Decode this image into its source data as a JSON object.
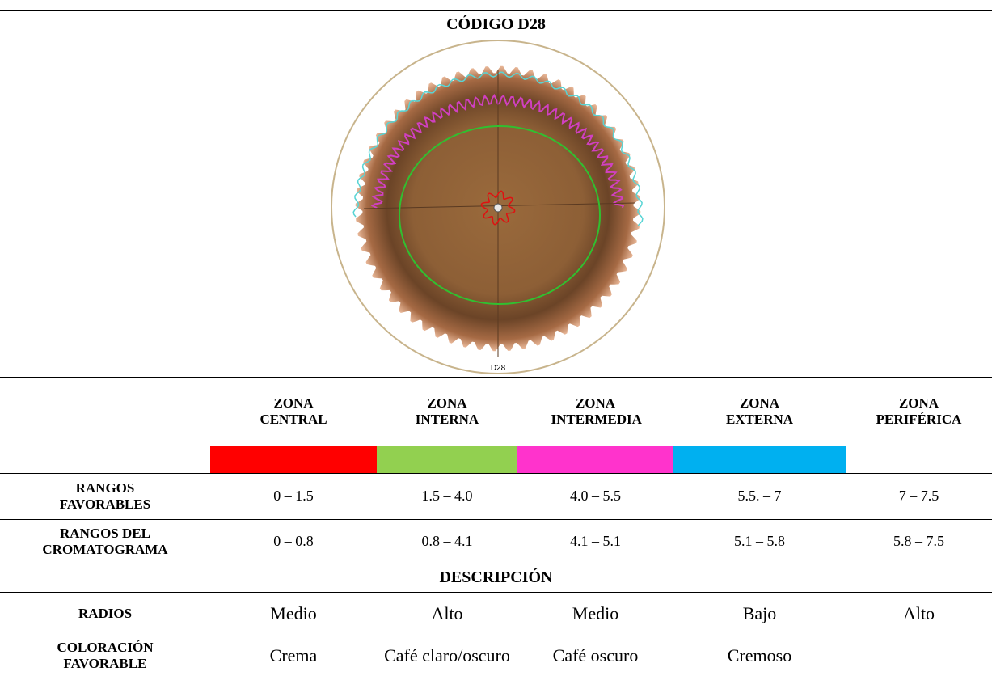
{
  "header": {
    "title": "CÓDIGO D28"
  },
  "image": {
    "label": "D28"
  },
  "table": {
    "zones": [
      {
        "name": "ZONA CENTRAL",
        "color": "#ff0000"
      },
      {
        "name": "ZONA INTERNA",
        "color": "#92d050"
      },
      {
        "name": "ZONA INTERMEDIA",
        "color": "#ff33cc"
      },
      {
        "name": "ZONA EXTERNA",
        "color": "#00b0f0"
      },
      {
        "name": "ZONA PERIFÉRICA",
        "color": "#ffffff"
      }
    ],
    "ranges": [
      {
        "label": "RANGOS FAVORABLES",
        "cells": [
          "0 – 1.5",
          "1.5 – 4.0",
          "4.0 – 5.5",
          "5.5. – 7",
          "7 – 7.5"
        ]
      },
      {
        "label": "RANGOS DEL CROMATOGRAMA",
        "cells": [
          "0 – 0.8",
          "0.8 – 4.1",
          "4.1 – 5.1",
          "5.1 – 5.8",
          "5.8 – 7.5"
        ]
      }
    ],
    "section": "DESCRIPCIÓN",
    "description": [
      {
        "label": "RADIOS",
        "cells": [
          "Medio",
          "Alto",
          "Medio",
          "Bajo",
          "Alto"
        ]
      },
      {
        "label": "COLORACIÓN FAVORABLE",
        "cells": [
          "Crema",
          "Café claro/oscuro",
          "Café oscuro",
          "Cremoso"
        ]
      }
    ]
  }
}
